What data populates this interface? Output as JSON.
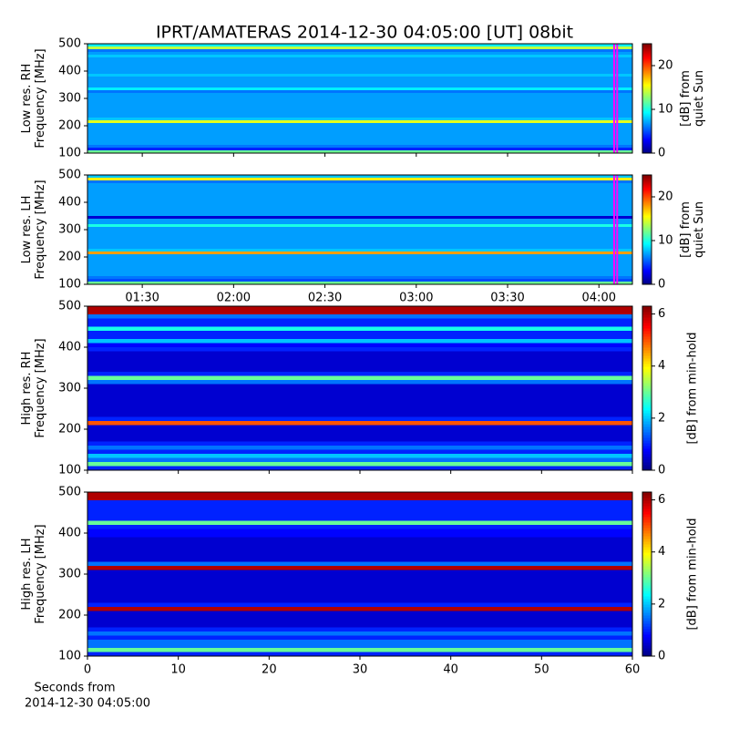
{
  "chart_data": [
    {
      "type": "heatmap",
      "title": "IPRT/AMATERAS 2014-12-30 04:05:00 [UT]   08bit",
      "ylabel": [
        "Low res. RH",
        "Frequency [MHz]"
      ],
      "xlim": [
        "01:12",
        "04:11"
      ],
      "xticks": [
        "01:30",
        "02:00",
        "02:30",
        "03:00",
        "03:30",
        "04:00"
      ],
      "xticklabels": false,
      "ylim": [
        100,
        500
      ],
      "yticks": [
        100,
        200,
        300,
        400,
        500
      ],
      "ybins": [
        100,
        110,
        120,
        130,
        140,
        150,
        160,
        170,
        180,
        190,
        200,
        210,
        220,
        230,
        240,
        250,
        260,
        270,
        280,
        290,
        300,
        310,
        320,
        330,
        340,
        350,
        360,
        370,
        380,
        390,
        400,
        410,
        420,
        430,
        440,
        450,
        460,
        470,
        480,
        490,
        500
      ],
      "values": [
        12,
        4,
        6,
        7,
        7,
        7,
        7,
        7,
        7,
        7,
        7,
        15,
        8,
        7,
        7,
        7,
        7,
        7,
        7,
        7,
        7,
        7,
        6,
        9,
        7,
        7,
        7,
        7,
        8,
        7,
        7,
        7,
        7,
        7,
        7,
        8,
        7,
        6,
        14,
        9
      ],
      "window": [
        "04:05",
        "04:06"
      ],
      "window_color": "#ff00ff",
      "clim": [
        0,
        25
      ],
      "cticks": [
        0,
        10,
        20
      ],
      "clabel": [
        "[dB] from",
        "quiet Sun"
      ]
    },
    {
      "type": "heatmap",
      "ylabel": [
        "Low res. LH",
        "Frequency [MHz]"
      ],
      "xlim": [
        "01:12",
        "04:11"
      ],
      "xticks": [
        "01:30",
        "02:00",
        "02:30",
        "03:00",
        "03:30",
        "04:00"
      ],
      "xticklabels": true,
      "ylim": [
        100,
        500
      ],
      "yticks": [
        100,
        200,
        300,
        400,
        500
      ],
      "ybins": [
        100,
        110,
        120,
        130,
        140,
        150,
        160,
        170,
        180,
        190,
        200,
        210,
        220,
        230,
        240,
        250,
        260,
        270,
        280,
        290,
        300,
        310,
        320,
        330,
        340,
        350,
        360,
        370,
        380,
        390,
        400,
        410,
        420,
        430,
        440,
        450,
        460,
        470,
        480,
        490,
        500
      ],
      "values": [
        12,
        5,
        6,
        7,
        7,
        7,
        7,
        7,
        7,
        7,
        7,
        18,
        8,
        7,
        7,
        7,
        7,
        7,
        7,
        7,
        7,
        10,
        7,
        7,
        2,
        7,
        7,
        7,
        7,
        7,
        7,
        7,
        7,
        7,
        7,
        7,
        7,
        6,
        16,
        8
      ],
      "window": [
        "04:05",
        "04:06"
      ],
      "window_color": "#ff00ff",
      "clim": [
        0,
        25
      ],
      "cticks": [
        0,
        10,
        20
      ],
      "clabel": [
        "[dB] from",
        "quiet Sun"
      ]
    },
    {
      "type": "heatmap",
      "ylabel": [
        "High res. RH",
        "Frequency [MHz]"
      ],
      "xlim": [
        0,
        60
      ],
      "xticks": [
        0,
        10,
        20,
        30,
        40,
        50,
        60
      ],
      "xticklabels": false,
      "ylim": [
        100,
        500
      ],
      "yticks": [
        100,
        200,
        300,
        400,
        500
      ],
      "ybins": [
        100,
        110,
        120,
        130,
        140,
        150,
        160,
        170,
        180,
        190,
        200,
        210,
        220,
        230,
        240,
        250,
        260,
        270,
        280,
        290,
        300,
        310,
        320,
        330,
        340,
        350,
        360,
        370,
        380,
        390,
        400,
        410,
        420,
        430,
        440,
        450,
        460,
        470,
        480,
        490,
        500
      ],
      "values": [
        1,
        3,
        1.5,
        2,
        1,
        1.5,
        1,
        0.5,
        0.5,
        0.5,
        0.5,
        5,
        1,
        0.5,
        0.5,
        0.5,
        0.5,
        0.5,
        0.5,
        0.5,
        0.5,
        1.5,
        3,
        1,
        0.5,
        0.5,
        0.5,
        0.5,
        0.5,
        1,
        0.8,
        2,
        1,
        1,
        2.5,
        1,
        1,
        1.5,
        6,
        6
      ],
      "clim": [
        0,
        6.3
      ],
      "cticks": [
        0,
        2,
        4,
        6
      ],
      "clabel": [
        "[dB] from min-hold"
      ]
    },
    {
      "type": "heatmap",
      "ylabel": [
        "High res. LH",
        "Frequency [MHz]"
      ],
      "xlim": [
        0,
        60
      ],
      "xticks": [
        0,
        10,
        20,
        30,
        40,
        50,
        60
      ],
      "xticklabels": true,
      "xlabel": [
        "Seconds from",
        "2014-12-30 04:05:00"
      ],
      "ylim": [
        100,
        500
      ],
      "yticks": [
        100,
        200,
        300,
        400,
        500
      ],
      "ybins": [
        100,
        110,
        120,
        130,
        140,
        150,
        160,
        170,
        180,
        190,
        200,
        210,
        220,
        230,
        240,
        250,
        260,
        270,
        280,
        290,
        300,
        310,
        320,
        330,
        340,
        350,
        360,
        370,
        380,
        390,
        400,
        410,
        420,
        430,
        440,
        450,
        460,
        470,
        480,
        490,
        500
      ],
      "values": [
        1,
        3,
        1.5,
        1.5,
        1,
        1.5,
        1,
        0.5,
        0.5,
        0.5,
        0.5,
        6,
        1,
        0.5,
        0.5,
        0.5,
        0.5,
        0.5,
        0.5,
        0.5,
        0.5,
        6,
        1.5,
        0.5,
        0.5,
        0.5,
        0.5,
        0.5,
        0.5,
        0.8,
        0.8,
        1,
        3,
        1,
        1,
        1,
        1,
        1,
        6,
        6
      ],
      "clim": [
        0,
        6.3
      ],
      "cticks": [
        0,
        2,
        4,
        6
      ],
      "clabel": [
        "[dB] from min-hold"
      ]
    }
  ]
}
